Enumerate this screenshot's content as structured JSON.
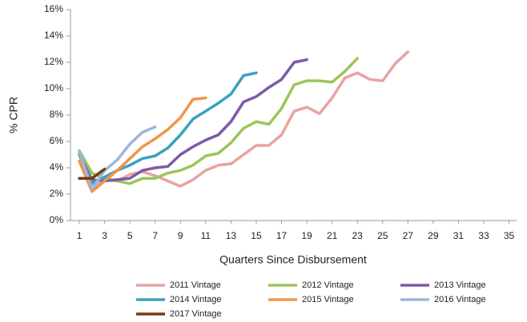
{
  "chart_data": {
    "type": "line",
    "y_label": "% CPR",
    "x_label": "Quarters Since Disbursement",
    "xlim": [
      0.3,
      35.6
    ],
    "xticks": [
      1,
      3,
      5,
      7,
      9,
      11,
      13,
      15,
      17,
      19,
      21,
      23,
      25,
      27,
      29,
      31,
      33,
      35
    ],
    "ylim": [
      0,
      16
    ],
    "yticks": [
      {
        "value": 0,
        "label": "0%"
      },
      {
        "value": 2,
        "label": "2%"
      },
      {
        "value": 4,
        "label": "4%"
      },
      {
        "value": 6,
        "label": "6%"
      },
      {
        "value": 8,
        "label": "8%"
      },
      {
        "value": 10,
        "label": "10%"
      },
      {
        "value": 12,
        "label": "12%"
      },
      {
        "value": 14,
        "label": "14%"
      },
      {
        "value": 16,
        "label": "16%"
      }
    ],
    "grid": false,
    "series": [
      {
        "name": "2011 Vintage",
        "color": "#e8a3a3",
        "x": [
          1,
          2,
          3,
          4,
          5,
          6,
          7,
          8,
          9,
          10,
          11,
          12,
          13,
          14,
          15,
          16,
          17,
          18,
          19,
          20,
          21,
          22,
          23,
          24,
          25,
          26,
          27
        ],
        "values": [
          5.0,
          2.4,
          3.1,
          3.0,
          3.5,
          3.7,
          3.4,
          3.0,
          2.6,
          3.1,
          3.8,
          4.2,
          4.3,
          5.0,
          5.7,
          5.7,
          6.5,
          8.3,
          8.6,
          8.1,
          9.3,
          10.8,
          11.2,
          10.7,
          10.6,
          11.9,
          12.8
        ]
      },
      {
        "name": "2012 Vintage",
        "color": "#9dc45a",
        "x": [
          1,
          2,
          3,
          4,
          5,
          6,
          7,
          8,
          9,
          10,
          11,
          12,
          13,
          14,
          15,
          16,
          17,
          18,
          19,
          20,
          21,
          22,
          23
        ],
        "values": [
          5.3,
          3.6,
          3.2,
          3.0,
          2.8,
          3.2,
          3.2,
          3.6,
          3.8,
          4.2,
          4.9,
          5.1,
          5.9,
          7.0,
          7.5,
          7.3,
          8.5,
          10.3,
          10.6,
          10.6,
          10.5,
          11.3,
          12.3
        ]
      },
      {
        "name": "2013 Vintage",
        "color": "#7b5ba6",
        "x": [
          1,
          2,
          3,
          4,
          5,
          6,
          7,
          8,
          9,
          10,
          11,
          12,
          13,
          14,
          15,
          16,
          17,
          18,
          19
        ],
        "values": [
          5.0,
          3.1,
          3.0,
          3.1,
          3.2,
          3.8,
          4.0,
          4.1,
          5.0,
          5.6,
          6.1,
          6.5,
          7.5,
          9.0,
          9.4,
          10.1,
          10.7,
          12.0,
          12.2
        ]
      },
      {
        "name": "2014 Vintage",
        "color": "#3aa0c0",
        "x": [
          1,
          2,
          3,
          4,
          5,
          6,
          7,
          8,
          9,
          10,
          11,
          12,
          13,
          14,
          15
        ],
        "values": [
          5.0,
          2.8,
          3.3,
          3.8,
          4.2,
          4.7,
          4.9,
          5.5,
          6.5,
          7.7,
          8.3,
          8.9,
          9.6,
          11.0,
          11.2
        ]
      },
      {
        "name": "2015 Vintage",
        "color": "#f0954a",
        "x": [
          1,
          2,
          3,
          4,
          5,
          6,
          7,
          8,
          9,
          10,
          11
        ],
        "values": [
          4.5,
          2.2,
          3.0,
          3.8,
          4.7,
          5.6,
          6.2,
          6.9,
          7.8,
          9.2,
          9.3
        ]
      },
      {
        "name": "2016 Vintage",
        "color": "#9db5dd",
        "x": [
          1,
          2,
          3,
          4,
          5,
          6,
          7
        ],
        "values": [
          5.2,
          2.4,
          3.8,
          4.6,
          5.8,
          6.7,
          7.1
        ]
      },
      {
        "name": "2017 Vintage",
        "color": "#7a3b10",
        "x": [
          1,
          2,
          3
        ],
        "values": [
          3.2,
          3.2,
          3.9
        ]
      }
    ]
  }
}
